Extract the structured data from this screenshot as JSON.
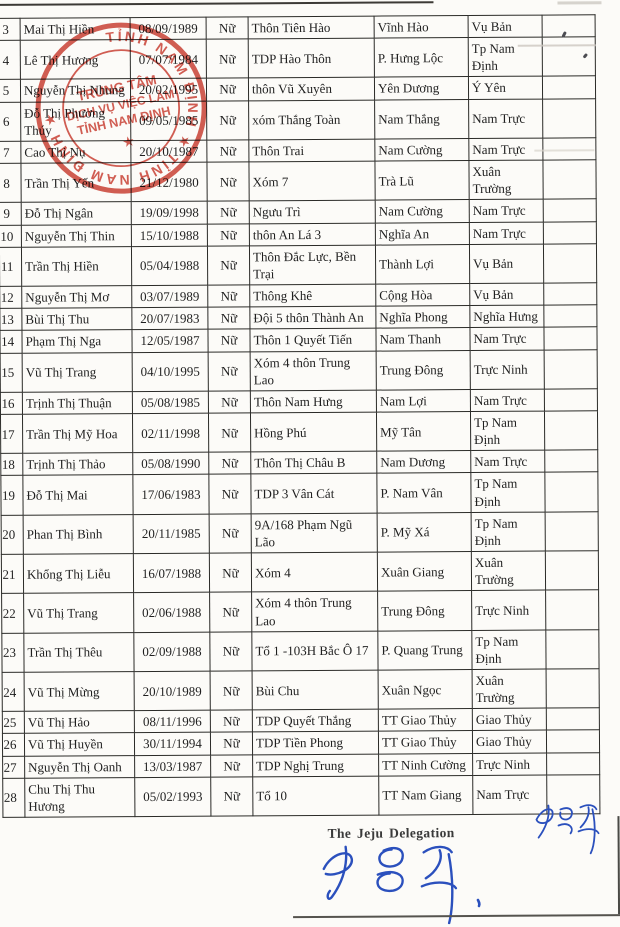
{
  "table": {
    "rows": [
      {
        "num": "3",
        "name": "Mai Thị Hiền",
        "dob": "08/09/1989",
        "gender": "Nữ",
        "hamlet": "Thôn Tiên Hào",
        "commune": "Vĩnh Hào",
        "district": "Vụ Bản"
      },
      {
        "num": "4",
        "name": "Lê Thị Hương",
        "dob": "07/07/1984",
        "gender": "Nữ",
        "hamlet": "TDP Hào Thôn",
        "commune": "P. Hưng Lộc",
        "district": "Tp Nam Định"
      },
      {
        "num": "5",
        "name": "Nguyễn Thị Nhung",
        "dob": "20/02/1995",
        "gender": "Nữ",
        "hamlet": "thôn Vũ Xuyên",
        "commune": "Yên Dương",
        "district": "Ý Yên"
      },
      {
        "num": "6",
        "name": "Đỗ Thị Phương Thúy",
        "dob": "09/05/1985",
        "gender": "Nữ",
        "hamlet": "xóm Thắng Toàn",
        "commune": "Nam Thắng",
        "district": "Nam Trực"
      },
      {
        "num": "7",
        "name": "Cao Thị Nụ",
        "dob": "20/10/1987",
        "gender": "Nữ",
        "hamlet": "Thôn Trai",
        "commune": "Nam Cường",
        "district": "Nam Trực"
      },
      {
        "num": "8",
        "name": "Trần Thị Yến",
        "dob": "21/12/1980",
        "gender": "Nữ",
        "hamlet": "Xóm 7",
        "commune": "Trà Lũ",
        "district": "Xuân Trường"
      },
      {
        "num": "9",
        "name": "Đỗ Thị Ngân",
        "dob": "19/09/1998",
        "gender": "Nữ",
        "hamlet": "Ngưu Trì",
        "commune": "Nam Cường",
        "district": "Nam Trực"
      },
      {
        "num": "10",
        "name": "Nguyễn Thị Thin",
        "dob": "15/10/1988",
        "gender": "Nữ",
        "hamlet": "thôn An Lá 3",
        "commune": "Nghĩa An",
        "district": "Nam Trực"
      },
      {
        "num": "11",
        "name": "Trần Thị Hiền",
        "dob": "05/04/1988",
        "gender": "Nữ",
        "hamlet": "Thôn Đắc Lực, Bền Trại",
        "commune": "Thành Lợi",
        "district": "Vụ Bản"
      },
      {
        "num": "12",
        "name": "Nguyễn Thị Mơ",
        "dob": "03/07/1989",
        "gender": "Nữ",
        "hamlet": "Thông Khê",
        "commune": "Cộng Hòa",
        "district": "Vụ Bản"
      },
      {
        "num": "13",
        "name": "Bùi Thị Thu",
        "dob": "20/07/1983",
        "gender": "Nữ",
        "hamlet": "Đội 5 thôn Thành An",
        "commune": "Nghĩa Phong",
        "district": "Nghĩa Hưng"
      },
      {
        "num": "14",
        "name": "Phạm Thị Nga",
        "dob": "12/05/1987",
        "gender": "Nữ",
        "hamlet": "Thôn 1 Quyết Tiến",
        "commune": "Nam Thanh",
        "district": "Nam Trực"
      },
      {
        "num": "15",
        "name": "Vũ Thị Trang",
        "dob": "04/10/1995",
        "gender": "Nữ",
        "hamlet": "Xóm 4 thôn Trung Lao",
        "commune": "Trung Đông",
        "district": "Trực Ninh"
      },
      {
        "num": "16",
        "name": "Trịnh Thị Thuận",
        "dob": "05/08/1985",
        "gender": "Nữ",
        "hamlet": "Thôn Nam Hưng",
        "commune": "Nam Lợi",
        "district": "Nam Trực"
      },
      {
        "num": "17",
        "name": "Trần Thị Mỹ Hoa",
        "dob": "02/11/1998",
        "gender": "Nữ",
        "hamlet": "Hồng Phú",
        "commune": "Mỹ Tân",
        "district": "Tp Nam Định"
      },
      {
        "num": "18",
        "name": "Trịnh Thị Thảo",
        "dob": "05/08/1990",
        "gender": "Nữ",
        "hamlet": "Thôn Thị Châu B",
        "commune": "Nam Dương",
        "district": "Nam Trực"
      },
      {
        "num": "19",
        "name": "Đỗ Thị Mai",
        "dob": "17/06/1983",
        "gender": "Nữ",
        "hamlet": "TDP 3 Vân Cát",
        "commune": "P. Nam Vân",
        "district": "Tp Nam Định"
      },
      {
        "num": "20",
        "name": "Phan Thị Bình",
        "dob": "20/11/1985",
        "gender": "Nữ",
        "hamlet": "9A/168 Phạm Ngũ Lão",
        "commune": "P. Mỹ Xá",
        "district": "Tp Nam Định"
      },
      {
        "num": "21",
        "name": "Khổng Thị Liễu",
        "dob": "16/07/1988",
        "gender": "Nữ",
        "hamlet": "Xóm 4",
        "commune": "Xuân Giang",
        "district": "Xuân Trường"
      },
      {
        "num": "22",
        "name": "Vũ Thị Trang",
        "dob": "02/06/1988",
        "gender": "Nữ",
        "hamlet": "Xóm 4 thôn Trung Lao",
        "commune": "Trung Đông",
        "district": "Trực Ninh"
      },
      {
        "num": "23",
        "name": "Trần Thị Thêu",
        "dob": "02/09/1988",
        "gender": "Nữ",
        "hamlet": "Tổ 1 -103H Bắc Ô 17",
        "commune": "P. Quang Trung",
        "district": "Tp Nam Định"
      },
      {
        "num": "24",
        "name": "Vũ Thị Mừng",
        "dob": "20/10/1989",
        "gender": "Nữ",
        "hamlet": "Bùi Chu",
        "commune": "Xuân Ngọc",
        "district": "Xuân Trường"
      },
      {
        "num": "25",
        "name": "Vũ Thị Hảo",
        "dob": "08/11/1996",
        "gender": "Nữ",
        "hamlet": "TDP Quyết Thắng",
        "commune": "TT Giao Thủy",
        "district": "Giao Thủy"
      },
      {
        "num": "26",
        "name": "Vũ Thị Huyền",
        "dob": "30/11/1994",
        "gender": "Nữ",
        "hamlet": "TDP Tiền Phong",
        "commune": "TT Giao Thủy",
        "district": "Giao Thủy"
      },
      {
        "num": "27",
        "name": "Nguyễn Thị Oanh",
        "dob": "13/03/1987",
        "gender": "Nữ",
        "hamlet": "TDP Nghị Trung",
        "commune": "TT Ninh Cường",
        "district": "Trực Ninh"
      },
      {
        "num": "28",
        "name": "Chu Thị Thu Hương",
        "dob": "05/02/1993",
        "gender": "Nữ",
        "hamlet": "Tổ 10",
        "commune": "TT Nam Giang",
        "district": "Nam Trực"
      }
    ]
  },
  "stamp": {
    "ring_text": "TỈNH NAM ĐỊNH ★ TỈNH NAM ĐỊNH ★",
    "center_line1": "TRUNG TÂM",
    "center_line2": "DỊCH VỤ VIỆC LÀM",
    "center_line3": "TỈNH NAM ĐỊNH",
    "star": "★",
    "color": "#c6392d"
  },
  "footer": {
    "delegation_label": "The Jeju Delegation"
  },
  "signature": {
    "ink_color": "#2b50bd"
  }
}
